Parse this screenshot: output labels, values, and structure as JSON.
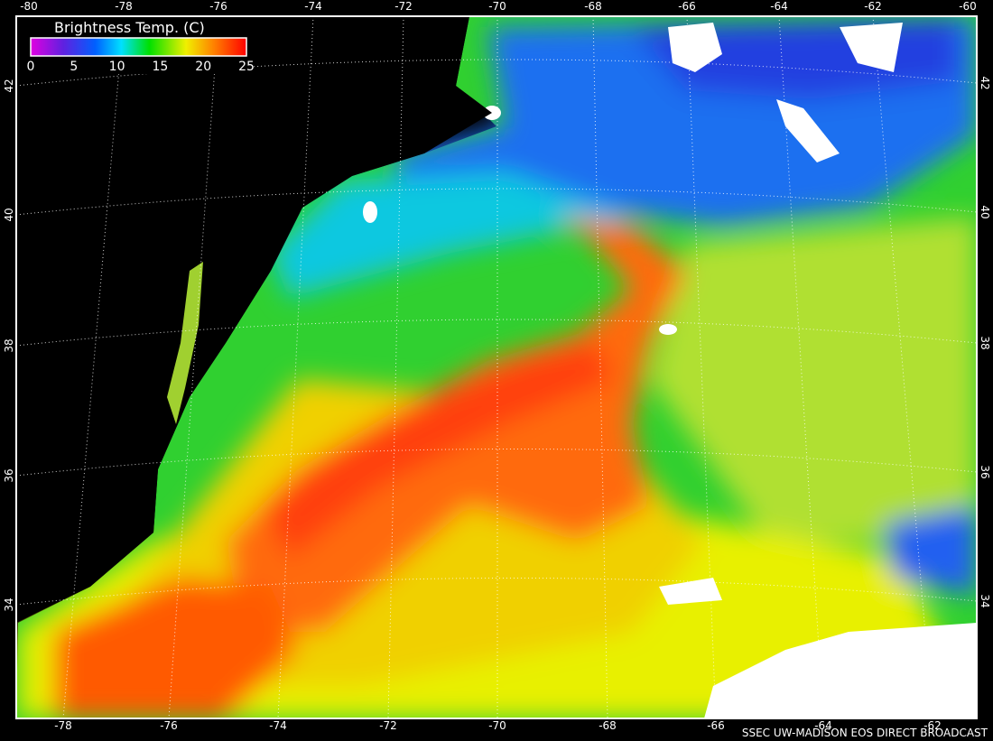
{
  "legend": {
    "title": "Brightness Temp. (C)",
    "ticks": [
      0,
      5,
      10,
      15,
      20,
      25
    ]
  },
  "top_labels": [
    -80,
    -78,
    -76,
    -74,
    -72,
    -70,
    -68,
    -66,
    -64,
    -62,
    -60
  ],
  "bottom_labels": [
    -78,
    -76,
    -74,
    -72,
    -70,
    -68,
    -66,
    -64,
    -62
  ],
  "left_labels": [
    42,
    40,
    38,
    36,
    34
  ],
  "right_labels": [
    42,
    40,
    38,
    36,
    34
  ],
  "credit": "SSEC UW-MADISON EOS DIRECT BROADCAST"
}
